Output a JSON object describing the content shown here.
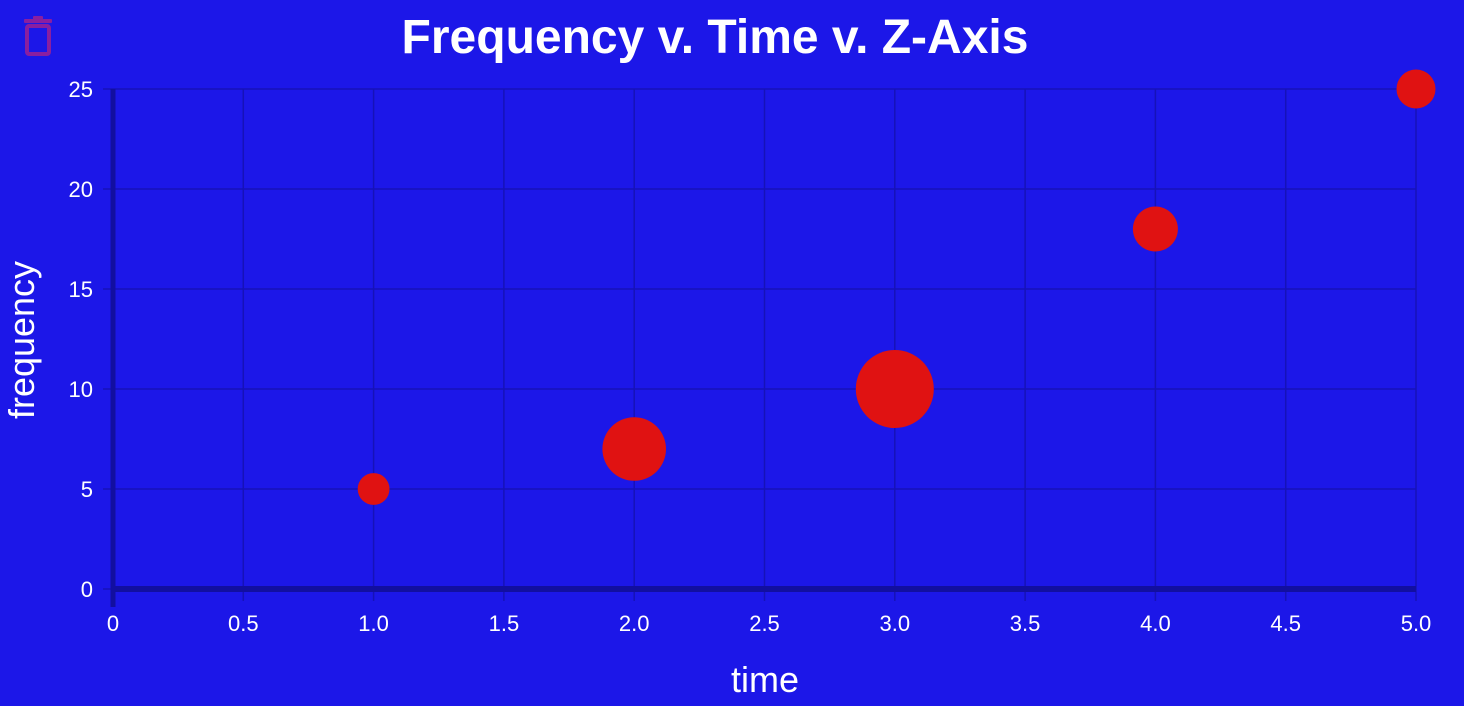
{
  "toolbar": {
    "delete_icon": "trash-icon"
  },
  "colors": {
    "background": "#1c17e8",
    "grid": "#1612b8",
    "axis": "#120fa0",
    "bubble": "#e01212",
    "text": "#ffffff",
    "icon": "#8a1fa0"
  },
  "chart_data": {
    "type": "scatter",
    "title": "Frequency v. Time v. Z-Axis",
    "xlabel": "time",
    "ylabel": "frequency",
    "xlim": [
      0,
      5
    ],
    "ylim": [
      0,
      25
    ],
    "x_ticks": [
      "0",
      "0.5",
      "1.0",
      "1.5",
      "2.0",
      "2.5",
      "3.0",
      "3.5",
      "4.0",
      "4.5",
      "5.0"
    ],
    "y_ticks": [
      "0",
      "5",
      "10",
      "15",
      "20",
      "25"
    ],
    "grid": true,
    "series": [
      {
        "points": [
          {
            "x": 1,
            "y": 5,
            "z": 1
          },
          {
            "x": 2,
            "y": 7,
            "z": 4
          },
          {
            "x": 3,
            "y": 10,
            "z": 6
          },
          {
            "x": 4,
            "y": 18,
            "z": 2
          },
          {
            "x": 5,
            "y": 25,
            "z": 1.5
          }
        ]
      }
    ]
  }
}
